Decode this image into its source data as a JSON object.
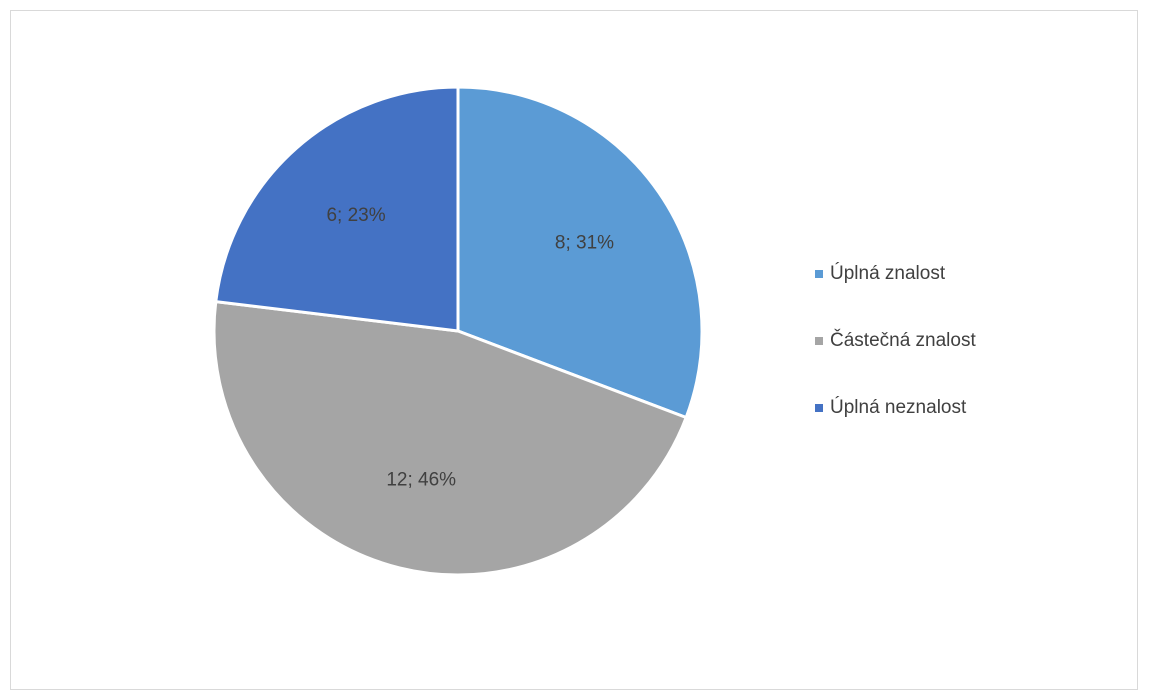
{
  "chart_data": {
    "type": "pie",
    "title": "",
    "categories": [
      "Úplná znalost",
      "Částečná znalost",
      "Úplná neznalost"
    ],
    "values": [
      8,
      12,
      6
    ],
    "percentages": [
      31,
      46,
      23
    ],
    "data_labels": [
      "8; 31%",
      "12; 46%",
      "6; 23%"
    ],
    "colors": [
      "#5b9bd5",
      "#a5a5a5",
      "#4472c4"
    ],
    "legend_position": "right",
    "start_angle_deg": 0,
    "direction": "clockwise"
  },
  "legend": {
    "items": [
      {
        "label": "Úplná znalost",
        "color": "#5b9bd5"
      },
      {
        "label": "Částečná znalost",
        "color": "#a5a5a5"
      },
      {
        "label": "Úplná neznalost",
        "color": "#4472c4"
      }
    ]
  }
}
